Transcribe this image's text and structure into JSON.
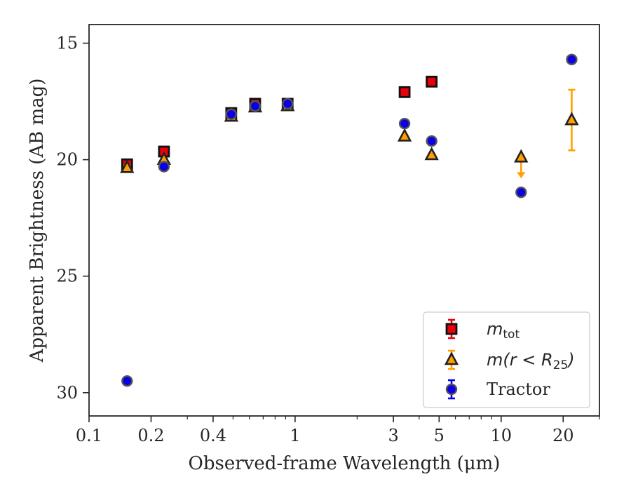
{
  "chart_data": {
    "type": "scatter",
    "title": "",
    "xlabel": "Observed-frame Wavelength (μm)",
    "ylabel": "Apparent Brightness (AB mag)",
    "xscale": "log",
    "xlim": [
      0.1,
      30
    ],
    "ylim": [
      31,
      14.2
    ],
    "y_inverted": true,
    "xticks": [
      {
        "value": 0.1,
        "label": "0.1"
      },
      {
        "value": 0.2,
        "label": "0.2"
      },
      {
        "value": 0.4,
        "label": "0.4"
      },
      {
        "value": 1,
        "label": "1"
      },
      {
        "value": 3,
        "label": "3"
      },
      {
        "value": 5,
        "label": "5"
      },
      {
        "value": 10,
        "label": "10"
      },
      {
        "value": 20,
        "label": "20"
      }
    ],
    "yticks": [
      {
        "value": 15,
        "label": "15"
      },
      {
        "value": 20,
        "label": "20"
      },
      {
        "value": 25,
        "label": "25"
      },
      {
        "value": 30,
        "label": "30"
      }
    ],
    "grid": false,
    "legend_position": "lower-right",
    "series": [
      {
        "name": "m_tot",
        "legend_main": "m",
        "legend_sub": "tot",
        "marker": "square",
        "color": "#e8000b",
        "points": [
          {
            "x": 0.153,
            "y": 20.2,
            "yerr": 0.1
          },
          {
            "x": 0.231,
            "y": 19.65,
            "yerr": 0.05
          },
          {
            "x": 0.49,
            "y": 18.0,
            "yerr": 0.03
          },
          {
            "x": 0.64,
            "y": 17.6,
            "yerr": 0.03
          },
          {
            "x": 0.92,
            "y": 17.6,
            "yerr": 0.03
          },
          {
            "x": 3.4,
            "y": 17.1,
            "yerr": 0.03
          },
          {
            "x": 4.6,
            "y": 16.65,
            "yerr": 0.03
          }
        ]
      },
      {
        "name": "m(r < R_25)",
        "legend_main": "m(r < R",
        "legend_sub": "25",
        "legend_tail": ")",
        "marker": "triangle",
        "color": "#ff9f00",
        "points": [
          {
            "x": 0.153,
            "y": 20.35,
            "yerr": 0.1
          },
          {
            "x": 0.231,
            "y": 20.0,
            "yerr": 0.05
          },
          {
            "x": 0.49,
            "y": 18.15,
            "yerr": 0.03
          },
          {
            "x": 0.64,
            "y": 17.75,
            "yerr": 0.03
          },
          {
            "x": 0.92,
            "y": 17.7,
            "yerr": 0.03
          },
          {
            "x": 3.4,
            "y": 19.0,
            "yerr": 0.05
          },
          {
            "x": 4.6,
            "y": 19.8,
            "yerr": 0.05
          },
          {
            "x": 12.5,
            "y": 19.9,
            "upper_limit": true
          },
          {
            "x": 22.0,
            "y": 18.3,
            "yerr": 1.3
          }
        ]
      },
      {
        "name": "Tractor",
        "marker": "circle",
        "color": "#0a00e8",
        "points": [
          {
            "x": 0.153,
            "y": 29.5,
            "yerr": 0.1
          },
          {
            "x": 0.231,
            "y": 20.3,
            "yerr": 0.05
          },
          {
            "x": 0.49,
            "y": 18.05,
            "yerr": 0.03
          },
          {
            "x": 0.64,
            "y": 17.7,
            "yerr": 0.03
          },
          {
            "x": 0.92,
            "y": 17.6,
            "yerr": 0.03
          },
          {
            "x": 3.4,
            "y": 18.45,
            "yerr": 0.05
          },
          {
            "x": 4.6,
            "y": 19.2,
            "yerr": 0.05
          },
          {
            "x": 12.5,
            "y": 21.4,
            "yerr": 0.05
          },
          {
            "x": 22.0,
            "y": 15.7,
            "yerr": 0.05
          }
        ]
      }
    ]
  }
}
